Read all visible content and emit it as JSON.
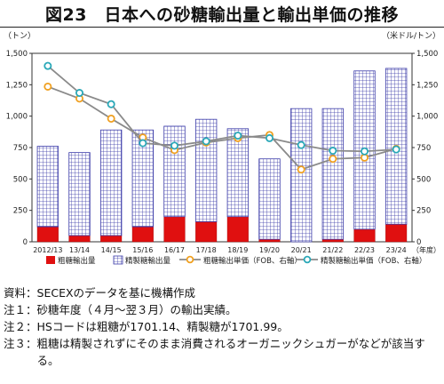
{
  "title": "図23　日本への砂糖輸出量と輸出単価の推移",
  "chart_data": {
    "type": "bar",
    "categories": [
      "2012/13",
      "13/14",
      "14/15",
      "15/16",
      "16/17",
      "17/18",
      "18/19",
      "19/20",
      "20/21",
      "21/22",
      "22/23",
      "23/24"
    ],
    "xlabel": "（年度）",
    "ylabel_left": "（トン）",
    "ylabel_right": "（米ドル/トン）",
    "ylim_left": [
      0,
      1500
    ],
    "ylim_right": [
      0,
      1500
    ],
    "yticks_left": [
      "0",
      "250",
      "500",
      "750",
      "1,000",
      "1,250",
      "1,500"
    ],
    "yticks_right": [
      "0",
      "250",
      "500",
      "750",
      "1,000",
      "1,250",
      "1,500"
    ],
    "series": [
      {
        "name": "粗糖輸出量",
        "kind": "bar",
        "axis": "left",
        "color": "#e01010",
        "values": [
          120,
          50,
          50,
          120,
          200,
          160,
          200,
          20,
          0,
          20,
          100,
          140
        ]
      },
      {
        "name": "精製糖輸出量",
        "kind": "bar",
        "axis": "left",
        "color": "#3a3aa8",
        "values": [
          640,
          660,
          840,
          770,
          720,
          815,
          700,
          640,
          1060,
          1040,
          1260,
          1240
        ]
      },
      {
        "name": "粗糖輸出単価（FOB、右軸）",
        "kind": "line",
        "axis": "right",
        "color": "#f0a020",
        "values": [
          1235,
          1140,
          980,
          830,
          730,
          790,
          825,
          850,
          575,
          660,
          670,
          740
        ]
      },
      {
        "name": "精製糖輸出単価（FOB、右軸）",
        "kind": "line",
        "axis": "right",
        "color": "#2aa8b8",
        "values": [
          1400,
          1185,
          1095,
          785,
          765,
          800,
          845,
          825,
          770,
          725,
          720,
          735
        ]
      }
    ],
    "grid": false,
    "legend_position": "bottom"
  },
  "notes": [
    {
      "label": "資料：",
      "text": "SECEXのデータを基に機構作成"
    },
    {
      "label": "注１：",
      "text": "砂糖年度（４月～翌３月）の輸出実績。"
    },
    {
      "label": "注２：",
      "text": "HSコードは粗糖が1701.14、精製糖が1701.99。"
    },
    {
      "label": "注３：",
      "text": "粗糖は精製されずにそのまま消費されるオーガニックシュガーがなどが該当する。"
    }
  ]
}
